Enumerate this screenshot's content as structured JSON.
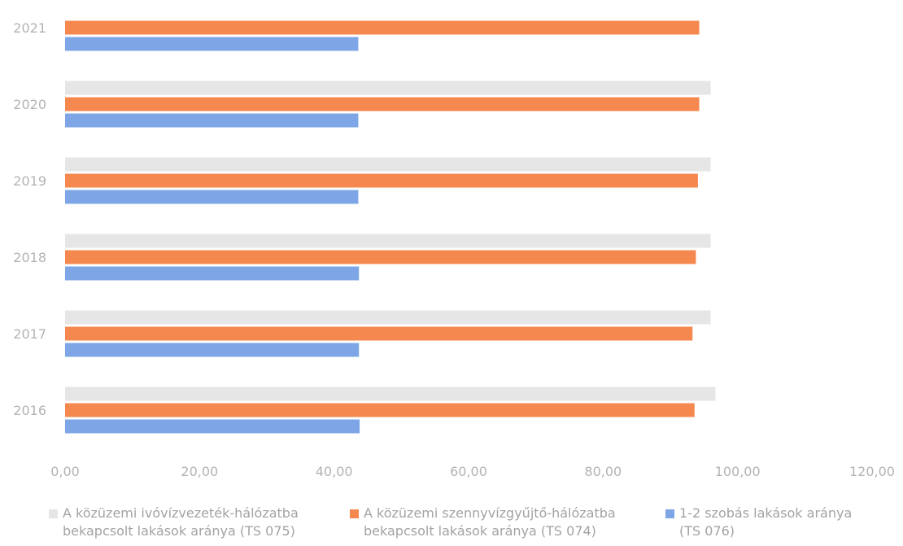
{
  "chart_data": {
    "type": "bar",
    "orientation": "horizontal",
    "categories": [
      "2021",
      "2020",
      "2019",
      "2018",
      "2017",
      "2016"
    ],
    "series": [
      {
        "name": "A közüzemi ivóvízvezeték-hálózatba\nbekapcsolt lakások aránya (TS 075)",
        "color": "#e6e6e6",
        "values": [
          null,
          96.0,
          96.0,
          96.0,
          96.0,
          96.7
        ]
      },
      {
        "name": "A közüzemi szennyvízgyűjtő-hálózatba\nbekapcsolt lakások aránya (TS 074)",
        "color": "#f5884f",
        "values": [
          94.3,
          94.3,
          94.1,
          93.8,
          93.3,
          93.6
        ]
      },
      {
        "name": "1-2 szobás lakások aránya\n(TS 076)",
        "color": "#7ea6e6",
        "values": [
          43.6,
          43.6,
          43.6,
          43.7,
          43.7,
          43.8
        ]
      }
    ],
    "xlim": [
      0,
      120
    ],
    "xticks": [
      "0,00",
      "20,00",
      "40,00",
      "60,00",
      "80,00",
      "100,00",
      "120,00"
    ],
    "grid": false,
    "legend_position": "bottom"
  }
}
